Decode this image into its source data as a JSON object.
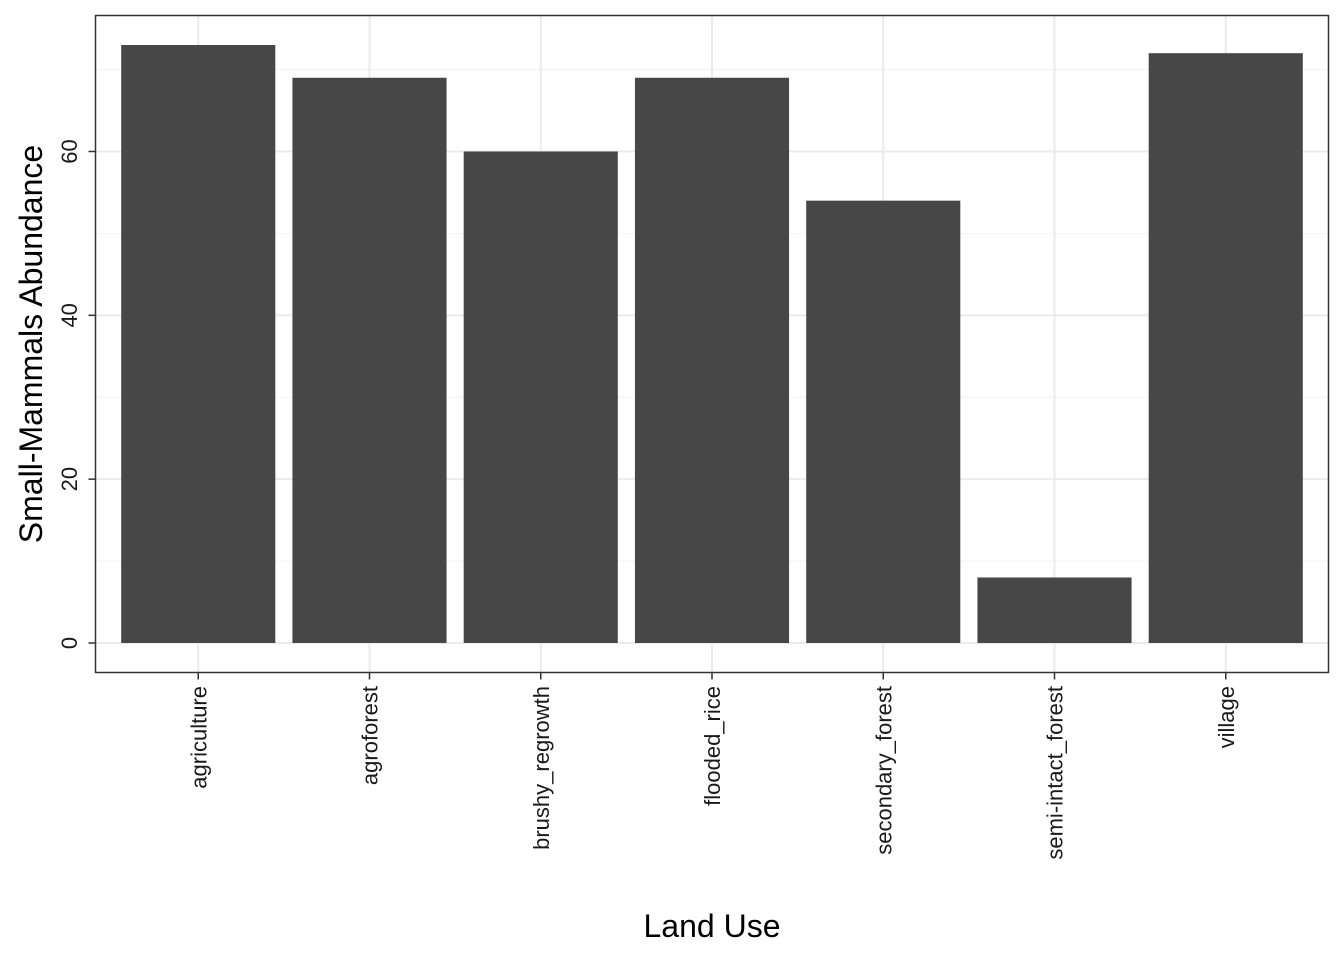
{
  "chart_data": {
    "type": "bar",
    "categories": [
      "agriculture",
      "agroforest",
      "brushy_regrowth",
      "flooded_rice",
      "secondary_forest",
      "semi-intact_forest",
      "village"
    ],
    "values": [
      73,
      69,
      60,
      69,
      54,
      8,
      72
    ],
    "xlabel": "Land Use",
    "ylabel": "Small-Mammals Abundance",
    "yticks": [
      0,
      20,
      40,
      60
    ],
    "ylim": [
      -3.6,
      76.6
    ],
    "grid": true,
    "bar_color": "#474747",
    "grid_color": "#ebebeb"
  }
}
